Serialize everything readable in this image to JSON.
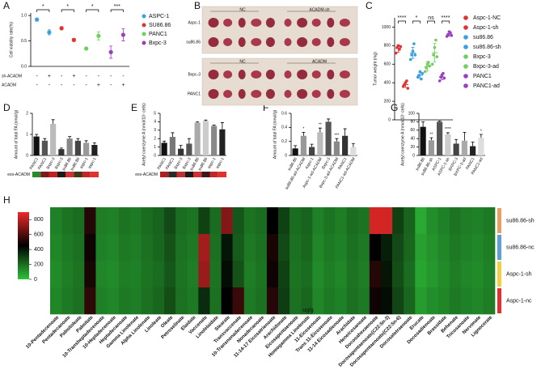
{
  "chart_data": [
    {
      "panel": "A",
      "type": "dot",
      "ylabel": "Cell viability rate(%)",
      "categories": [
        null,
        null,
        null,
        null,
        null,
        null,
        null,
        null
      ],
      "ylim": [
        0,
        1.05
      ],
      "yticks": [
        {
          "value": 0,
          "label": "0.0"
        },
        {
          "value": 0.5,
          "label": "0.5"
        },
        {
          "value": 1,
          "label": "1.0"
        }
      ],
      "series": [
        {
          "name": "ASPC-1",
          "color": "#3b9fe0",
          "values": [
            0.92,
            0.67,
            null,
            null,
            null,
            null,
            null,
            null
          ],
          "errors": [
            0.03,
            0.05,
            null,
            null,
            null,
            null,
            null,
            null
          ]
        },
        {
          "name": "SU86.86",
          "color": "#e03232",
          "values": [
            null,
            null,
            0.75,
            0.52,
            null,
            null,
            null,
            null
          ],
          "errors": [
            null,
            null,
            0.03,
            0.03,
            null,
            null,
            null,
            null
          ]
        },
        {
          "name": "PANC1",
          "color": "#6fcf5c",
          "values": [
            null,
            null,
            null,
            null,
            0.35,
            0.6,
            null,
            null
          ],
          "errors": [
            null,
            null,
            null,
            null,
            0.02,
            0.08,
            null,
            null
          ]
        },
        {
          "name": "Bxpc-3",
          "color": "#9a3fc2",
          "values": [
            null,
            null,
            null,
            null,
            null,
            null,
            0.28,
            0.62
          ],
          "errors": [
            null,
            null,
            null,
            null,
            null,
            null,
            0.12,
            0.12
          ]
        }
      ],
      "annotations": [
        {
          "pair": [
            0,
            1
          ],
          "text": "*"
        },
        {
          "pair": [
            2,
            3
          ],
          "text": "*"
        },
        {
          "pair": [
            4,
            5
          ],
          "text": "*"
        },
        {
          "pair": [
            6,
            7
          ],
          "text": "***"
        }
      ],
      "sign_rows": [
        {
          "label": "sh-ACADM",
          "signs": [
            "-",
            "+",
            "-",
            "+",
            "-",
            "-",
            "-",
            "-"
          ]
        },
        {
          "label": "ACADM",
          "signs": [
            "-",
            "-",
            "-",
            "-",
            "-",
            "+",
            "-",
            "+"
          ]
        }
      ]
    },
    {
      "panel": "C",
      "type": "strip",
      "ylabel": "Tumor weight (mg)",
      "categories": [
        "Aspc-1-NC",
        "Aspc-1-sh",
        "su86.86",
        "su86.86-sh",
        "Bxpc-3",
        "Bxpc-3-ad",
        "PANC1",
        "PANC1-ad"
      ],
      "colors": [
        "#e03232",
        "#e03232",
        "#3b9fe0",
        "#3b9fe0",
        "#6fcf5c",
        "#6fcf5c",
        "#9a3fc2",
        "#9a3fc2"
      ],
      "values": [
        770,
        380,
        722,
        480,
        576,
        724,
        462,
        924
      ],
      "errors": [
        40,
        30,
        60,
        30,
        50,
        100,
        30,
        20
      ],
      "points": [
        [
          720,
          780,
          800,
          760,
          790
        ],
        [
          360,
          380,
          400,
          420,
          340
        ],
        [
          650,
          700,
          740,
          820,
          700
        ],
        [
          460,
          480,
          520,
          440,
          500
        ],
        [
          520,
          560,
          600,
          620,
          580
        ],
        [
          600,
          700,
          780,
          860,
          680
        ],
        [
          420,
          460,
          480,
          500,
          450
        ],
        [
          900,
          920,
          950,
          940,
          910
        ]
      ],
      "ylim": [
        0,
        1100
      ],
      "yticks": [
        0,
        200,
        400,
        600,
        800,
        1000
      ],
      "annotations": [
        {
          "pair": [
            0,
            1
          ],
          "text": "****"
        },
        {
          "pair": [
            2,
            3
          ],
          "text": "*"
        },
        {
          "pair": [
            4,
            5
          ],
          "text": "ns"
        },
        {
          "pair": [
            6,
            7
          ],
          "text": "****"
        }
      ]
    },
    {
      "panel": "D",
      "type": "bar",
      "ylabel": "Amount of total FA (nmol/g)",
      "categories": [
        "PANC1",
        "PANC1",
        "Bxpc-3",
        "Bxpc-3",
        "su86.86",
        "su86.86",
        "aspc-1",
        "aspc-1"
      ],
      "values": [
        0.9,
        0.7,
        1.5,
        0.3,
        0.8,
        0.7,
        0.6,
        0.5
      ],
      "errors": [
        0.1,
        0.1,
        0.2,
        0.05,
        0.1,
        0.1,
        0.1,
        0.1
      ],
      "colors": [
        "#111111",
        "#555555",
        "#bbbbbb",
        "#333333",
        "#888888",
        "#444444",
        "#999999",
        "#222222"
      ],
      "ylim": [
        0,
        2
      ],
      "yticks": [
        0,
        1,
        2
      ],
      "strip": {
        "label": "exo-ACADM",
        "colors": [
          "#2a8a2a",
          "#7a1a1a",
          "#c02020",
          "#1a1a1a",
          "#d03030",
          "#3a3a1a",
          "#c02828",
          "#e03030"
        ]
      }
    },
    {
      "panel": "E",
      "type": "bar",
      "ylabel": "Acetyl coenzyme A (nmol/10⁷ cells)",
      "categories": [
        "PANC1",
        "PANC1",
        "Bxpc-3",
        "Bxpc-3",
        "su86.86",
        "su86.86",
        "aspc-1",
        "aspc-1"
      ],
      "values": [
        1.5,
        2.2,
        0.8,
        1.4,
        3.9,
        4.1,
        3.5,
        3.1
      ],
      "errors": [
        0.2,
        0.5,
        0.4,
        0.6,
        0.1,
        0.1,
        0.1,
        0.8
      ],
      "colors": [
        "#111111",
        "#777777",
        "#333333",
        "#555555",
        "#aaaaaa",
        "#cccccc",
        "#888888",
        "#222222"
      ],
      "ylim": [
        0,
        5
      ],
      "yticks": [
        0,
        1,
        2,
        3,
        4,
        5
      ],
      "strip": {
        "label": "exo-ACADM",
        "colors": [
          "#b02020",
          "#2a2a2a",
          "#c03030",
          "#1a1a1a",
          "#d03030",
          "#3a1a1a",
          "#c02828",
          "#e03030"
        ]
      }
    },
    {
      "panel": "F",
      "type": "bar",
      "ylabel": "Amount of total FA (nmol/g)",
      "categories": [
        "su86.86",
        "su86.86-ad-ACADM",
        "Aspc-1",
        "Aspc-1-ad-ACADM",
        "Bxpc-3",
        "Bxpc-3-ad-ACADM",
        "PANC1",
        "PANC1-ad-ACADM"
      ],
      "values": [
        0.1,
        0.28,
        0.12,
        0.33,
        0.48,
        0.2,
        0.28,
        0.12
      ],
      "errors": [
        0.04,
        0.05,
        0.04,
        0.06,
        0.04,
        0.04,
        0.1,
        0.05
      ],
      "colors": [
        "#111111",
        "#999999",
        "#444444",
        "#bbbbbb",
        "#555555",
        "#888888",
        "#333333",
        "#dddddd"
      ],
      "ylim": [
        0,
        0.6
      ],
      "yticks": [
        0,
        0.2,
        0.4,
        0.6
      ],
      "annotations": [
        {
          "index": 1,
          "text": "*"
        },
        {
          "index": 3,
          "text": "**"
        },
        {
          "index": 5,
          "text": "***"
        }
      ]
    },
    {
      "panel": "G",
      "type": "bar",
      "ylabel": "Acetyl coenzyme A (nmol/10⁷ cells)",
      "categories": [
        "su86.86",
        "su86.86-sh",
        "ASPC-1",
        "ASPC-1-sh",
        "BXPC-3",
        "BXPC-3-ad",
        "PANC1",
        "PANC1-ad"
      ],
      "values": [
        68,
        36,
        80,
        50,
        28,
        35,
        22,
        42
      ],
      "errors": [
        12,
        6,
        2,
        4,
        10,
        20,
        10,
        8
      ],
      "colors": [
        "#111111",
        "#999999",
        "#555555",
        "#cccccc",
        "#444444",
        "#aaaaaa",
        "#222222",
        "#dddddd"
      ],
      "ylim": [
        0,
        100
      ],
      "yticks": [
        0,
        20,
        40,
        60,
        80,
        100
      ],
      "annotations": [
        {
          "index": 1,
          "text": "**"
        },
        {
          "index": 3,
          "text": "****"
        },
        {
          "index": 7,
          "text": "*"
        }
      ]
    },
    {
      "panel": "H",
      "type": "heatmap",
      "unit_label": "ug/g",
      "rows": [
        "su86.86-sh",
        "su86.86-nc",
        "Aspc-1-sh",
        "Aspc-1-nc"
      ],
      "row_colors": [
        "#e8a060",
        "#60a0d0",
        "#f0d040",
        "#e03030"
      ],
      "columns": [
        "10-Pentadecenoate",
        "Pentadecanoate",
        "Palmitoleate",
        "Palmitate",
        "10-Transheptadecenoate",
        "10-Heptadecenoate",
        "Heptadecanoate",
        "Gamma Linolenate",
        "Alpha Linolenate",
        "Linoleate",
        "Oleate",
        "Petroselinate",
        "Elaidate",
        "Vaccenate",
        "Linolelaidate",
        "Stearate",
        "Transvaccenate",
        "10-Transnonadecenoate",
        "Nonadecanoate",
        "11-14-17 Eicosatrienoate",
        "Arachidonate",
        "Eicosapentaenoate",
        "Homogamma Linolenate",
        "11-Eicosenoate",
        "Trans 11-Eicosenoate",
        "11-14 Eicosadienoate",
        "Arachidate",
        "Heneicosanoate",
        "Docosahexaenoate",
        "Docosapentaenoate(C22:5n-3)",
        "Docosapentaenoate(C22:5n-6)",
        "Docosatetraenoate",
        "Erucate",
        "Docosadienoate",
        "Brassidate",
        "Behenate",
        "Tricosanoate",
        "Nervonate",
        "Lignocerate"
      ],
      "values": [
        [
          150,
          180,
          200,
          520,
          160,
          150,
          180,
          170,
          200,
          220,
          280,
          200,
          180,
          300,
          200,
          700,
          250,
          180,
          200,
          450,
          300,
          200,
          220,
          150,
          180,
          160,
          200,
          180,
          850,
          850,
          300,
          220,
          60,
          120,
          150,
          180,
          160,
          150,
          170
        ],
        [
          140,
          170,
          190,
          480,
          150,
          140,
          170,
          160,
          190,
          210,
          260,
          190,
          170,
          760,
          190,
          400,
          240,
          170,
          190,
          500,
          280,
          190,
          210,
          140,
          170,
          150,
          190,
          170,
          450,
          380,
          280,
          210,
          80,
          110,
          140,
          170,
          150,
          140,
          160
        ],
        [
          130,
          160,
          180,
          500,
          140,
          130,
          160,
          150,
          180,
          200,
          250,
          180,
          160,
          740,
          180,
          420,
          260,
          160,
          180,
          480,
          300,
          180,
          200,
          130,
          160,
          140,
          180,
          160,
          520,
          400,
          270,
          200,
          70,
          100,
          130,
          160,
          140,
          130,
          150
        ],
        [
          140,
          170,
          190,
          540,
          150,
          140,
          170,
          160,
          190,
          210,
          270,
          190,
          170,
          350,
          190,
          450,
          560,
          170,
          190,
          520,
          310,
          190,
          210,
          140,
          170,
          150,
          190,
          170,
          480,
          420,
          290,
          210,
          90,
          120,
          140,
          170,
          150,
          140,
          160
        ]
      ],
      "zlim": [
        0,
        900
      ],
      "zticks": [
        0,
        200,
        400,
        600,
        800
      ],
      "colormap": [
        "#2fc23a",
        "#000000",
        "#ee2a2a"
      ]
    }
  ],
  "photo_panel": {
    "panel": "B",
    "blocks": [
      {
        "headers": [
          "NC",
          "ACADM-sh"
        ],
        "rows": [
          "Aspc-1",
          "su86.86"
        ]
      },
      {
        "headers": [
          "NC",
          "ACADM"
        ],
        "rows": [
          "Bxpc-3",
          "PANC1"
        ]
      }
    ]
  }
}
